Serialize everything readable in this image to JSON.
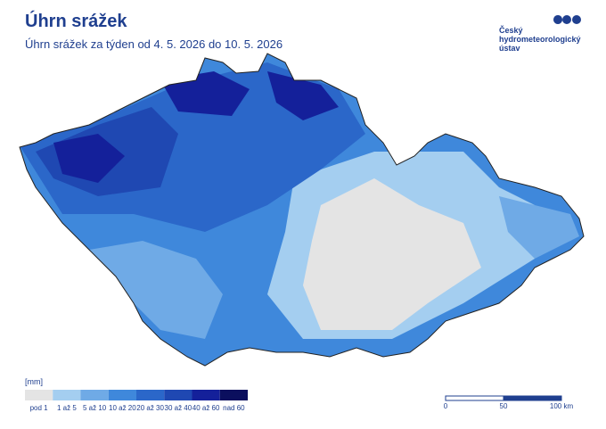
{
  "header": {
    "title": "Úhrn srážek",
    "subtitle": "Úhrn srážek za týden od 4. 5. 2026 do 10. 5. 2026"
  },
  "logo": {
    "lines": [
      "Český",
      "hydrometeorologický",
      "ústav"
    ]
  },
  "legend": {
    "unit": "[mm]",
    "classes": [
      {
        "label": "pod 1",
        "color": "#e4e4e4"
      },
      {
        "label": "1 až 5",
        "color": "#a4cef0"
      },
      {
        "label": "5 až 10",
        "color": "#6faae6"
      },
      {
        "label": "10 až 20",
        "color": "#3f88db"
      },
      {
        "label": "20 až 30",
        "color": "#2b67c9"
      },
      {
        "label": "30 až 40",
        "color": "#1f48b2"
      },
      {
        "label": "40 až 60",
        "color": "#14209a"
      },
      {
        "label": "nad 60",
        "color": "#0b0f5e"
      }
    ]
  },
  "scale_bar": {
    "labels": [
      "0",
      "50",
      "100 km"
    ]
  }
}
